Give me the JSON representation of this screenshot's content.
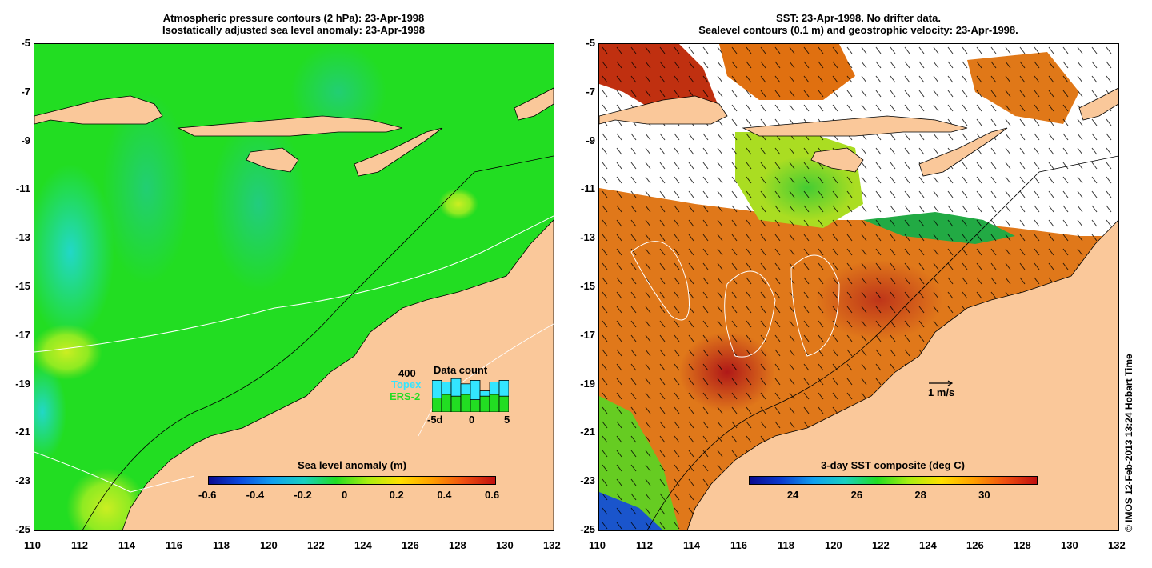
{
  "left_map": {
    "title_line1": "Atmospheric pressure contours (2 hPa): 23-Apr-1998",
    "title_line2": "Isostatically adjusted sea level anomaly: 23-Apr-1998",
    "colorbar_title": "Sea level anomaly (m)",
    "colorbar_ticks": [
      "-0.6",
      "-0.4",
      "-0.2",
      "0",
      "0.2",
      "0.4",
      "0.6"
    ],
    "colorbar_range": [
      -0.6,
      0.6
    ],
    "data_count": {
      "title": "Data count",
      "max_label": "400",
      "series": [
        {
          "name": "Topex",
          "color": "#33e5ff"
        },
        {
          "name": "ERS-2",
          "color": "#22dd22"
        }
      ],
      "x_ticks": [
        "-5d",
        "0",
        "5"
      ],
      "topex_values": [
        0.9,
        0.85,
        0.95,
        0.8,
        0.9,
        0.6,
        0.85,
        0.9
      ],
      "ers_values": [
        0.4,
        0.5,
        0.45,
        0.5,
        0.35,
        0.45,
        0.5,
        0.45
      ]
    }
  },
  "right_map": {
    "title_line1": "SST: 23-Apr-1998. No drifter data.",
    "title_line2": "Sealevel contours (0.1 m) and geostrophic velocity: 23-Apr-1998.",
    "colorbar_title": "3-day SST composite (deg C)",
    "colorbar_ticks": [
      "24",
      "26",
      "28",
      "30"
    ],
    "colorbar_range": [
      22.5,
      31.5
    ],
    "velocity_scale_label": "1 m/s"
  },
  "axes": {
    "x_ticks": [
      "110",
      "112",
      "114",
      "116",
      "118",
      "120",
      "122",
      "124",
      "126",
      "128",
      "130",
      "132"
    ],
    "y_ticks": [
      "-5",
      "-7",
      "-9",
      "-11",
      "-13",
      "-15",
      "-17",
      "-19",
      "-21",
      "-23",
      "-25"
    ],
    "lon_range": [
      110,
      132
    ],
    "lat_range": [
      -25,
      -5
    ]
  },
  "credit": "© IMOS 12-Feb-2013 13:24 Hobart Time",
  "colors": {
    "land": "#fac89a",
    "ocean_green": "#22dd22",
    "no_data": "#ffffff"
  }
}
